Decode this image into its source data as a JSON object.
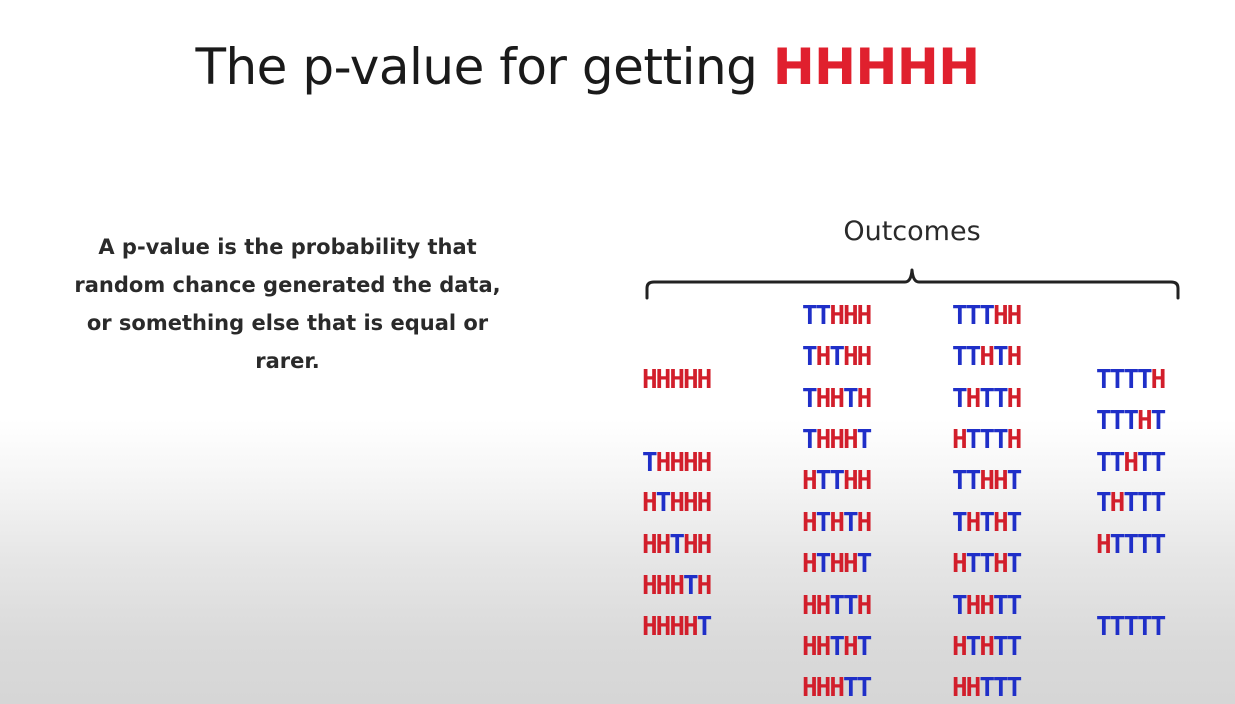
{
  "title": {
    "prefix": "The p-value for getting ",
    "highlight": "HHHHH",
    "highlight_color": "#e0202e"
  },
  "definition_text": "A p-value is the probability that random chance generated the data, or something else that is equal or rarer.",
  "outcomes_label": "Outcomes",
  "colors": {
    "heads": "#d21e2b",
    "tails": "#1f2fc8"
  },
  "outcome_columns": [
    [
      "HHHHH",
      "THHHH",
      "HTHHH",
      "HHTHH",
      "HHHTH",
      "HHHHT"
    ],
    [
      "TTHHH",
      "THTHH",
      "THHTH",
      "THHHT",
      "HTTHH",
      "HTHTH",
      "HTHHT",
      "HHTTH",
      "HHTHT",
      "HHHTT"
    ],
    [
      "TTTHH",
      "TTHTH",
      "THTTH",
      "HTTTH",
      "TTHHT",
      "THTHT",
      "HTTHT",
      "THHTT",
      "HTHTT",
      "HHTTT"
    ],
    [
      "TTTTH",
      "TTTHT",
      "TTHTT",
      "THTTT",
      "HTTTT",
      "TTTTT"
    ]
  ]
}
